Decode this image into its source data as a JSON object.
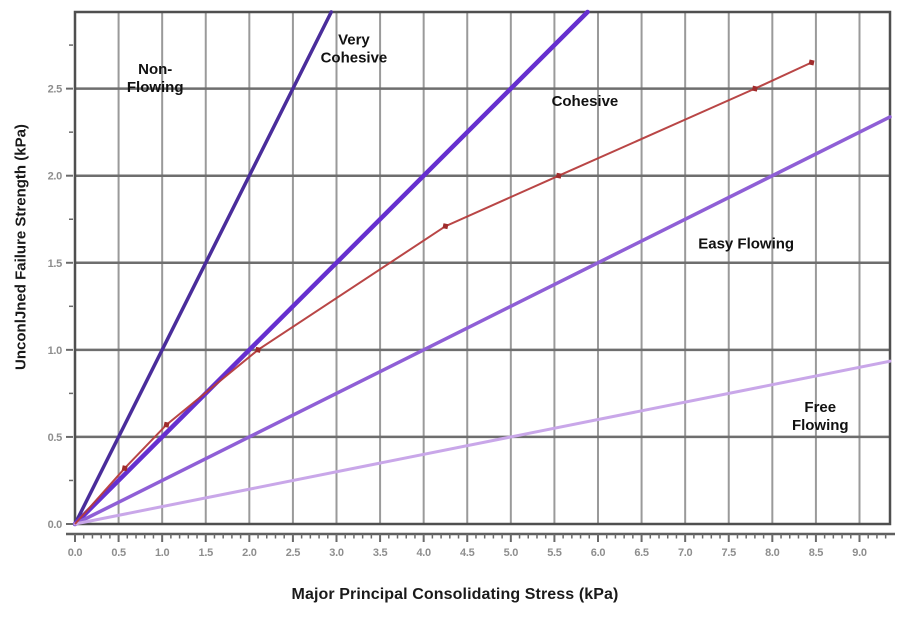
{
  "chart_data": {
    "type": "line",
    "title": "",
    "xlabel": "Major Principal Consolidating Stress (kPa)",
    "ylabel": "UnconlJned Failure Strength (kPa)",
    "xlim": [
      0,
      9.35
    ],
    "ylim": [
      0,
      2.94
    ],
    "grid": true,
    "legend": "none",
    "x_tick_values": [
      0,
      0.5,
      1.0,
      1.5,
      2.0,
      2.5,
      3.0,
      3.5,
      4.0,
      4.5,
      5.0,
      5.5,
      6.0,
      6.5,
      7.0,
      7.5,
      8.0,
      8.5,
      9.0
    ],
    "x_tick_labels": [
      "0.0",
      "0.5",
      "1.0",
      "1.5",
      "2.0",
      "2.5",
      "3.0",
      "3.5",
      "4.0",
      "4.5",
      "5.0",
      "5.5",
      "6.0",
      "6.5",
      "7.0",
      "7.5",
      "8.0",
      "8.5",
      "9.0"
    ],
    "y_tick_values": [
      0,
      0.5,
      1.0,
      1.5,
      2.0,
      2.5
    ],
    "y_tick_labels": [
      "0.0",
      "0.5",
      "1.0",
      "1.5",
      "2.0",
      "2.5"
    ],
    "x_minor_step": 0.1,
    "y_minor_step": 0.25,
    "boundary_lines": [
      {
        "name": "non-flowing-boundary",
        "region": "Non-Flowing / Very Cohesive",
        "slope": 1.0,
        "color": "#4a2d9b",
        "width": 3.5
      },
      {
        "name": "very-cohesive-boundary",
        "region": "Very Cohesive / Cohesive",
        "slope": 0.5,
        "color": "#6630cf",
        "width": 4.5
      },
      {
        "name": "easy-flowing-boundary",
        "region": "Cohesive / Easy Flowing",
        "slope": 0.25,
        "color": "#8f5fd6",
        "width": 3.5
      },
      {
        "name": "free-flowing-boundary",
        "region": "Easy Flowing / Free Flowing",
        "slope": 0.1,
        "color": "#c9a7e9",
        "width": 3
      }
    ],
    "series": [
      {
        "name": "measured-flow-function",
        "color": "#b53c3c",
        "marker_color": "#a02c2c",
        "width": 2,
        "points": [
          [
            0,
            0
          ],
          [
            0.57,
            0.32
          ],
          [
            1.05,
            0.57
          ],
          [
            2.1,
            1.0
          ],
          [
            4.25,
            1.71
          ],
          [
            5.55,
            2.0
          ],
          [
            7.8,
            2.5
          ],
          [
            8.45,
            2.65
          ]
        ]
      }
    ],
    "region_labels": [
      {
        "name": "label-non-flowing",
        "lines": [
          "Non-",
          "Flowing"
        ],
        "x": 0.92,
        "y": 2.56
      },
      {
        "name": "label-very-cohesive",
        "lines": [
          "Very",
          "Cohesive"
        ],
        "x": 3.2,
        "y": 2.73
      },
      {
        "name": "label-cohesive",
        "lines": [
          "Cohesive"
        ],
        "x": 5.85,
        "y": 2.43
      },
      {
        "name": "label-easy-flowing",
        "lines": [
          "Easy Flowing"
        ],
        "x": 7.7,
        "y": 1.61
      },
      {
        "name": "label-free-flowing",
        "lines": [
          "Free",
          "Flowing"
        ],
        "x": 8.55,
        "y": 0.62
      }
    ],
    "colors": {
      "background": "#ffffff",
      "grid_vertical": "#9a9a9a",
      "grid_horizontal": "#6e6e6e",
      "border": "#4f4f4f",
      "axis_strip": "#5f5f5f",
      "tick_mark": "#6a6a6a",
      "tick_label": "#8e8e8e",
      "region_label": "#111111",
      "axis_title": "#1a1a1a"
    }
  }
}
